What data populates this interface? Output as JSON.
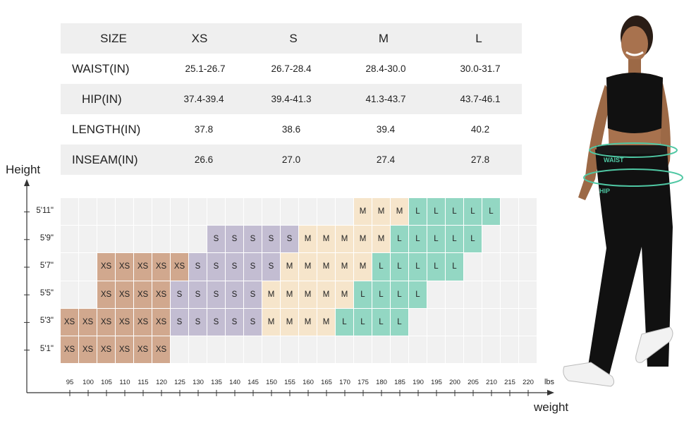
{
  "size_table": {
    "headers": [
      "SIZE",
      "XS",
      "S",
      "M",
      "L"
    ],
    "rows": [
      {
        "label": "WAIST(IN)",
        "values": [
          "25.1-26.7",
          "26.7-28.4",
          "28.4-30.0",
          "30.0-31.7"
        ]
      },
      {
        "label": "HIP(IN)",
        "values": [
          "37.4-39.4",
          "39.4-41.3",
          "41.3-43.7",
          "43.7-46.1"
        ]
      },
      {
        "label": "LENGTH(IN)",
        "values": [
          "37.8",
          "38.6",
          "39.4",
          "40.2"
        ]
      },
      {
        "label": "INSEAM(IN)",
        "values": [
          "26.6",
          "27.0",
          "27.4",
          "27.8"
        ]
      }
    ]
  },
  "chart": {
    "y_axis_title": "Height",
    "x_axis_title": "weight",
    "x_unit": "lbs",
    "heights": [
      "5'11\"",
      "5'9\"",
      "5'7\"",
      "5'5\"",
      "5'3\"",
      "5'1\""
    ],
    "weights": [
      "95",
      "100",
      "105",
      "110",
      "115",
      "120",
      "125",
      "130",
      "135",
      "140",
      "145",
      "150",
      "155",
      "160",
      "165",
      "170",
      "175",
      "180",
      "185",
      "190",
      "195",
      "200",
      "205",
      "210",
      "215",
      "220"
    ],
    "grid": [
      [
        "",
        "",
        "",
        "",
        "",
        "",
        "",
        "",
        "",
        "",
        "",
        "",
        "",
        "",
        "",
        "",
        "M",
        "M",
        "M",
        "L",
        "L",
        "L",
        "L",
        "L",
        "",
        ""
      ],
      [
        "",
        "",
        "",
        "",
        "",
        "",
        "",
        "",
        "S",
        "S",
        "S",
        "S",
        "S",
        "M",
        "M",
        "M",
        "M",
        "M",
        "L",
        "L",
        "L",
        "L",
        "L",
        "",
        "",
        ""
      ],
      [
        "",
        "",
        "XS",
        "XS",
        "XS",
        "XS",
        "XS",
        "S",
        "S",
        "S",
        "S",
        "S",
        "M",
        "M",
        "M",
        "M",
        "M",
        "L",
        "L",
        "L",
        "L",
        "L",
        "",
        "",
        "",
        ""
      ],
      [
        "",
        "",
        "XS",
        "XS",
        "XS",
        "XS",
        "S",
        "S",
        "S",
        "S",
        "S",
        "M",
        "M",
        "M",
        "M",
        "M",
        "L",
        "L",
        "L",
        "L",
        "",
        "",
        "",
        "",
        "",
        ""
      ],
      [
        "XS",
        "XS",
        "XS",
        "XS",
        "XS",
        "XS",
        "S",
        "S",
        "S",
        "S",
        "S",
        "M",
        "M",
        "M",
        "M",
        "L",
        "L",
        "L",
        "L",
        "",
        "",
        "",
        "",
        "",
        "",
        ""
      ],
      [
        "XS",
        "XS",
        "XS",
        "XS",
        "XS",
        "XS",
        "",
        "",
        "",
        "",
        "",
        "",
        "",
        "",
        "",
        "",
        "",
        "",
        "",
        "",
        "",
        "",
        "",
        "",
        "",
        ""
      ]
    ]
  },
  "colors": {
    "XS": "#d1a88e",
    "S": "#c3bdd2",
    "M": "#f6e5cb",
    "L": "#93d7c3",
    "empty": "#f1f1f1",
    "table_shade": "#efefef"
  },
  "model": {
    "waist_label": "WAIST",
    "hip_label": "HIP"
  }
}
